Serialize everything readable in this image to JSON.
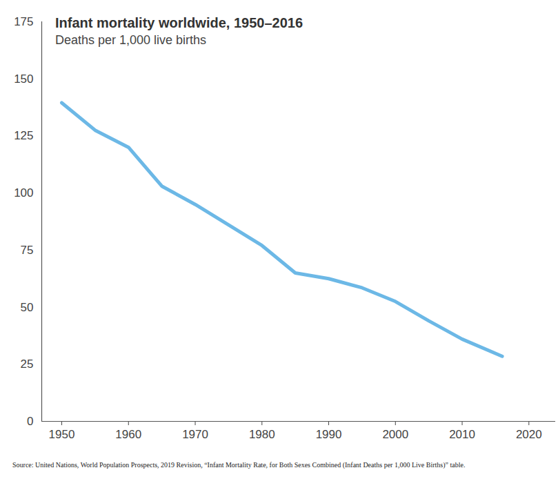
{
  "chart_data": {
    "type": "line",
    "title": "Infant mortality worldwide, 1950–2016",
    "subtitle": "Deaths per 1,000 live births",
    "source": "Source: United Nations, World Population Prospects, 2019 Revision, “Infant Mortality Rate, for Both Sexes Combined (Infant Deaths per 1,000 Live Births)” table.",
    "x": [
      1950,
      1955,
      1960,
      1965,
      1970,
      1975,
      1980,
      1985,
      1990,
      1995,
      2000,
      2005,
      2010,
      2016
    ],
    "values": [
      139.5,
      127.5,
      120,
      103,
      95,
      86,
      77,
      65,
      62.5,
      58.5,
      52.5,
      44,
      36,
      28.5
    ],
    "color": "#6cb8e6",
    "xlim": [
      1947,
      2024
    ],
    "xticks": [
      1950,
      1960,
      1970,
      1980,
      1990,
      2000,
      2010,
      2020
    ],
    "ylim": [
      0,
      175
    ],
    "yticks": [
      0,
      25,
      50,
      75,
      100,
      125,
      150,
      175
    ],
    "grid": false
  }
}
